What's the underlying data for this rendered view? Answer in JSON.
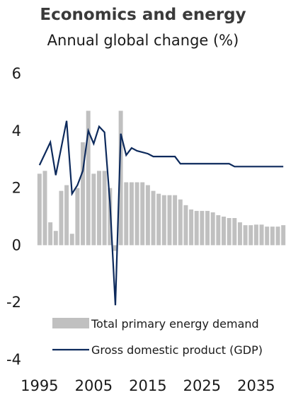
{
  "chart_data": {
    "type": "bar",
    "title": "Economics and energy",
    "subtitle": "Annual global change (%)",
    "ylim": [
      -4,
      6
    ],
    "yticks": [
      6,
      4,
      2,
      0,
      -2,
      -4
    ],
    "xlim": [
      1995,
      2040
    ],
    "xticks": [
      1995,
      2005,
      2015,
      2025,
      2035
    ],
    "grid": false,
    "legend_position": "bottom-right",
    "series": [
      {
        "name": "Total primary energy demand",
        "type": "bar",
        "color": "#c0c0c0",
        "x": [
          1995,
          1996,
          1997,
          1998,
          1999,
          2000,
          2001,
          2002,
          2003,
          2004,
          2005,
          2006,
          2007,
          2008,
          2009,
          2010,
          2011,
          2012,
          2013,
          2014,
          2015,
          2016,
          2017,
          2018,
          2019,
          2020,
          2021,
          2022,
          2023,
          2024,
          2025,
          2026,
          2027,
          2028,
          2029,
          2030,
          2031,
          2032,
          2033,
          2034,
          2035,
          2036,
          2037,
          2038,
          2039,
          2040
        ],
        "values": [
          2.5,
          2.6,
          0.8,
          0.5,
          1.9,
          2.1,
          0.4,
          2.0,
          3.6,
          4.7,
          2.5,
          2.6,
          2.6,
          2.0,
          -0.2,
          4.7,
          2.2,
          2.2,
          2.2,
          2.2,
          2.1,
          1.9,
          1.8,
          1.75,
          1.75,
          1.75,
          1.6,
          1.4,
          1.25,
          1.2,
          1.2,
          1.2,
          1.15,
          1.05,
          1.0,
          0.95,
          0.95,
          0.8,
          0.7,
          0.7,
          0.72,
          0.72,
          0.65,
          0.65,
          0.65,
          0.7
        ]
      },
      {
        "name": "Gross domestic product (GDP)",
        "type": "line",
        "color": "#0d2a5c",
        "x": [
          1995,
          1996,
          1997,
          1998,
          1999,
          2000,
          2001,
          2002,
          2003,
          2004,
          2005,
          2006,
          2007,
          2008,
          2009,
          2010,
          2011,
          2012,
          2013,
          2014,
          2015,
          2016,
          2017,
          2018,
          2019,
          2020,
          2021,
          2022,
          2023,
          2024,
          2025,
          2026,
          2027,
          2028,
          2029,
          2030,
          2031,
          2032,
          2033,
          2034,
          2035,
          2036,
          2037,
          2038,
          2039,
          2040
        ],
        "values": [
          2.8,
          3.2,
          3.6,
          2.45,
          3.4,
          4.35,
          1.8,
          2.1,
          2.6,
          4.0,
          3.55,
          4.15,
          3.95,
          1.5,
          -2.1,
          3.9,
          3.15,
          3.4,
          3.3,
          3.25,
          3.2,
          3.1,
          3.1,
          3.1,
          3.1,
          3.1,
          2.85,
          2.85,
          2.85,
          2.85,
          2.85,
          2.85,
          2.85,
          2.85,
          2.85,
          2.85,
          2.75,
          2.75,
          2.75,
          2.75,
          2.75,
          2.75,
          2.75,
          2.75,
          2.75,
          2.75
        ]
      }
    ]
  }
}
